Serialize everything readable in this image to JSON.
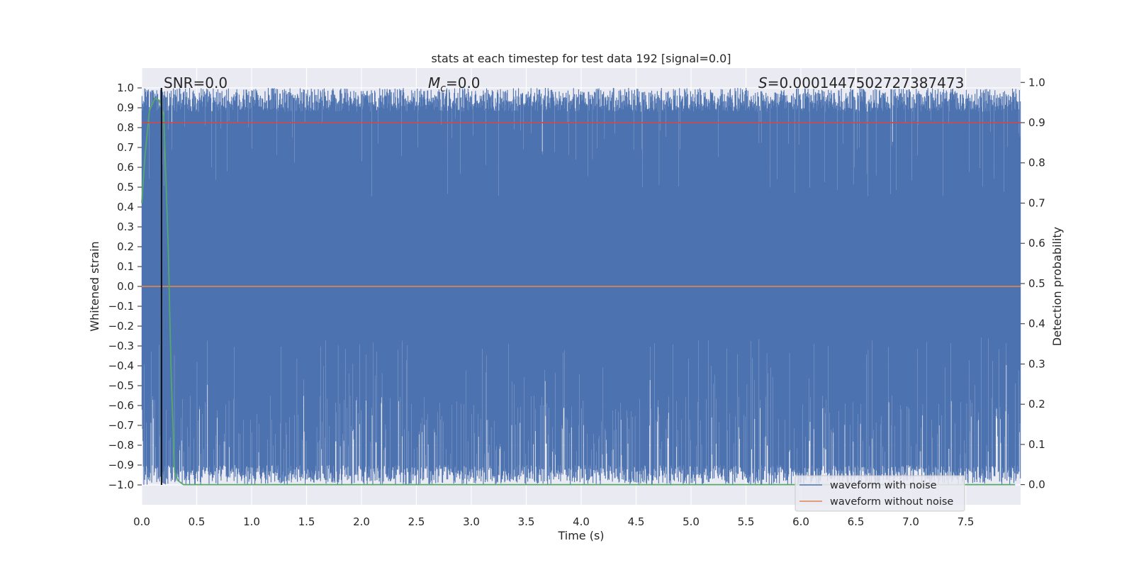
{
  "chart_data": {
    "type": "line",
    "title": "stats at each timestep for test data 192 [signal=0.0]",
    "xlabel": "Time (s)",
    "ylabel": "Whitened strain",
    "y2label": "Detection probability",
    "xlim": [
      0.0,
      8.0
    ],
    "ylim": [
      -1.1,
      1.1
    ],
    "y2lim": [
      -0.05,
      1.0357
    ],
    "xticks": [
      "0.0",
      "0.5",
      "1.0",
      "1.5",
      "2.0",
      "2.5",
      "3.0",
      "3.5",
      "4.0",
      "4.5",
      "5.0",
      "5.5",
      "6.0",
      "6.5",
      "7.0",
      "7.5"
    ],
    "yticks": [
      "1.0",
      "0.9",
      "0.8",
      "0.7",
      "0.6",
      "0.5",
      "0.4",
      "0.3",
      "0.2",
      "0.1",
      "0.0",
      "−0.1",
      "−0.2",
      "−0.3",
      "−0.4",
      "−0.5",
      "−0.6",
      "−0.7",
      "−0.8",
      "−0.9",
      "−1.0"
    ],
    "y2ticks": [
      "1.0",
      "0.9",
      "0.8",
      "0.7",
      "0.6",
      "0.5",
      "0.4",
      "0.3",
      "0.2",
      "0.1",
      "0.0"
    ],
    "grid": true,
    "annotations": {
      "snr": "SNR=0.0",
      "mc_symbol": "M",
      "mc_sub": "c",
      "mc_value": "=0.0",
      "s_symbol": "S",
      "s_value": "=0.0001447502727387473"
    },
    "legend": {
      "placement": "lower-right",
      "entries": [
        "waveform with noise",
        "waveform without noise"
      ]
    },
    "series": [
      {
        "name": "waveform with noise",
        "color": "#4c72b0",
        "axis": "left",
        "description": "whitened noisy strain oscillating between about -1.0 and 1.0",
        "x_range": [
          0.0,
          8.0
        ],
        "y_range": [
          -1.0,
          1.0
        ]
      },
      {
        "name": "waveform without noise",
        "color": "#dd8452",
        "axis": "left",
        "x": [
          0.0,
          8.0
        ],
        "y": [
          0.0,
          0.0
        ]
      },
      {
        "color": "#55a868",
        "axis": "right",
        "x": [
          0.0,
          0.03,
          0.07,
          0.12,
          0.16,
          0.2,
          0.24,
          0.27,
          0.3,
          0.33,
          0.38,
          0.5,
          1.0,
          2.0,
          3.0,
          4.0,
          5.0,
          6.0,
          7.0,
          7.95
        ],
        "y": [
          0.7,
          0.82,
          0.93,
          0.96,
          0.955,
          0.92,
          0.6,
          0.25,
          0.03,
          0.01,
          0.0,
          0.0,
          0.0,
          0.0,
          0.0,
          0.0,
          0.0,
          0.0,
          0.0,
          0.0
        ]
      },
      {
        "color": "#c44e52",
        "axis": "right",
        "x": [
          0.0,
          8.0
        ],
        "y": [
          0.9,
          0.9
        ]
      },
      {
        "color": "#111111",
        "axis": "left",
        "x": [
          0.18,
          0.18
        ],
        "y": [
          -1.0,
          1.0
        ]
      }
    ]
  },
  "colors": {
    "plot_background": "#eaeaf2",
    "grid": "#ffffff",
    "noise": "#4c72b0",
    "clean": "#dd8452",
    "probability": "#55a868",
    "threshold": "#c44e52",
    "marker": "#111111"
  }
}
